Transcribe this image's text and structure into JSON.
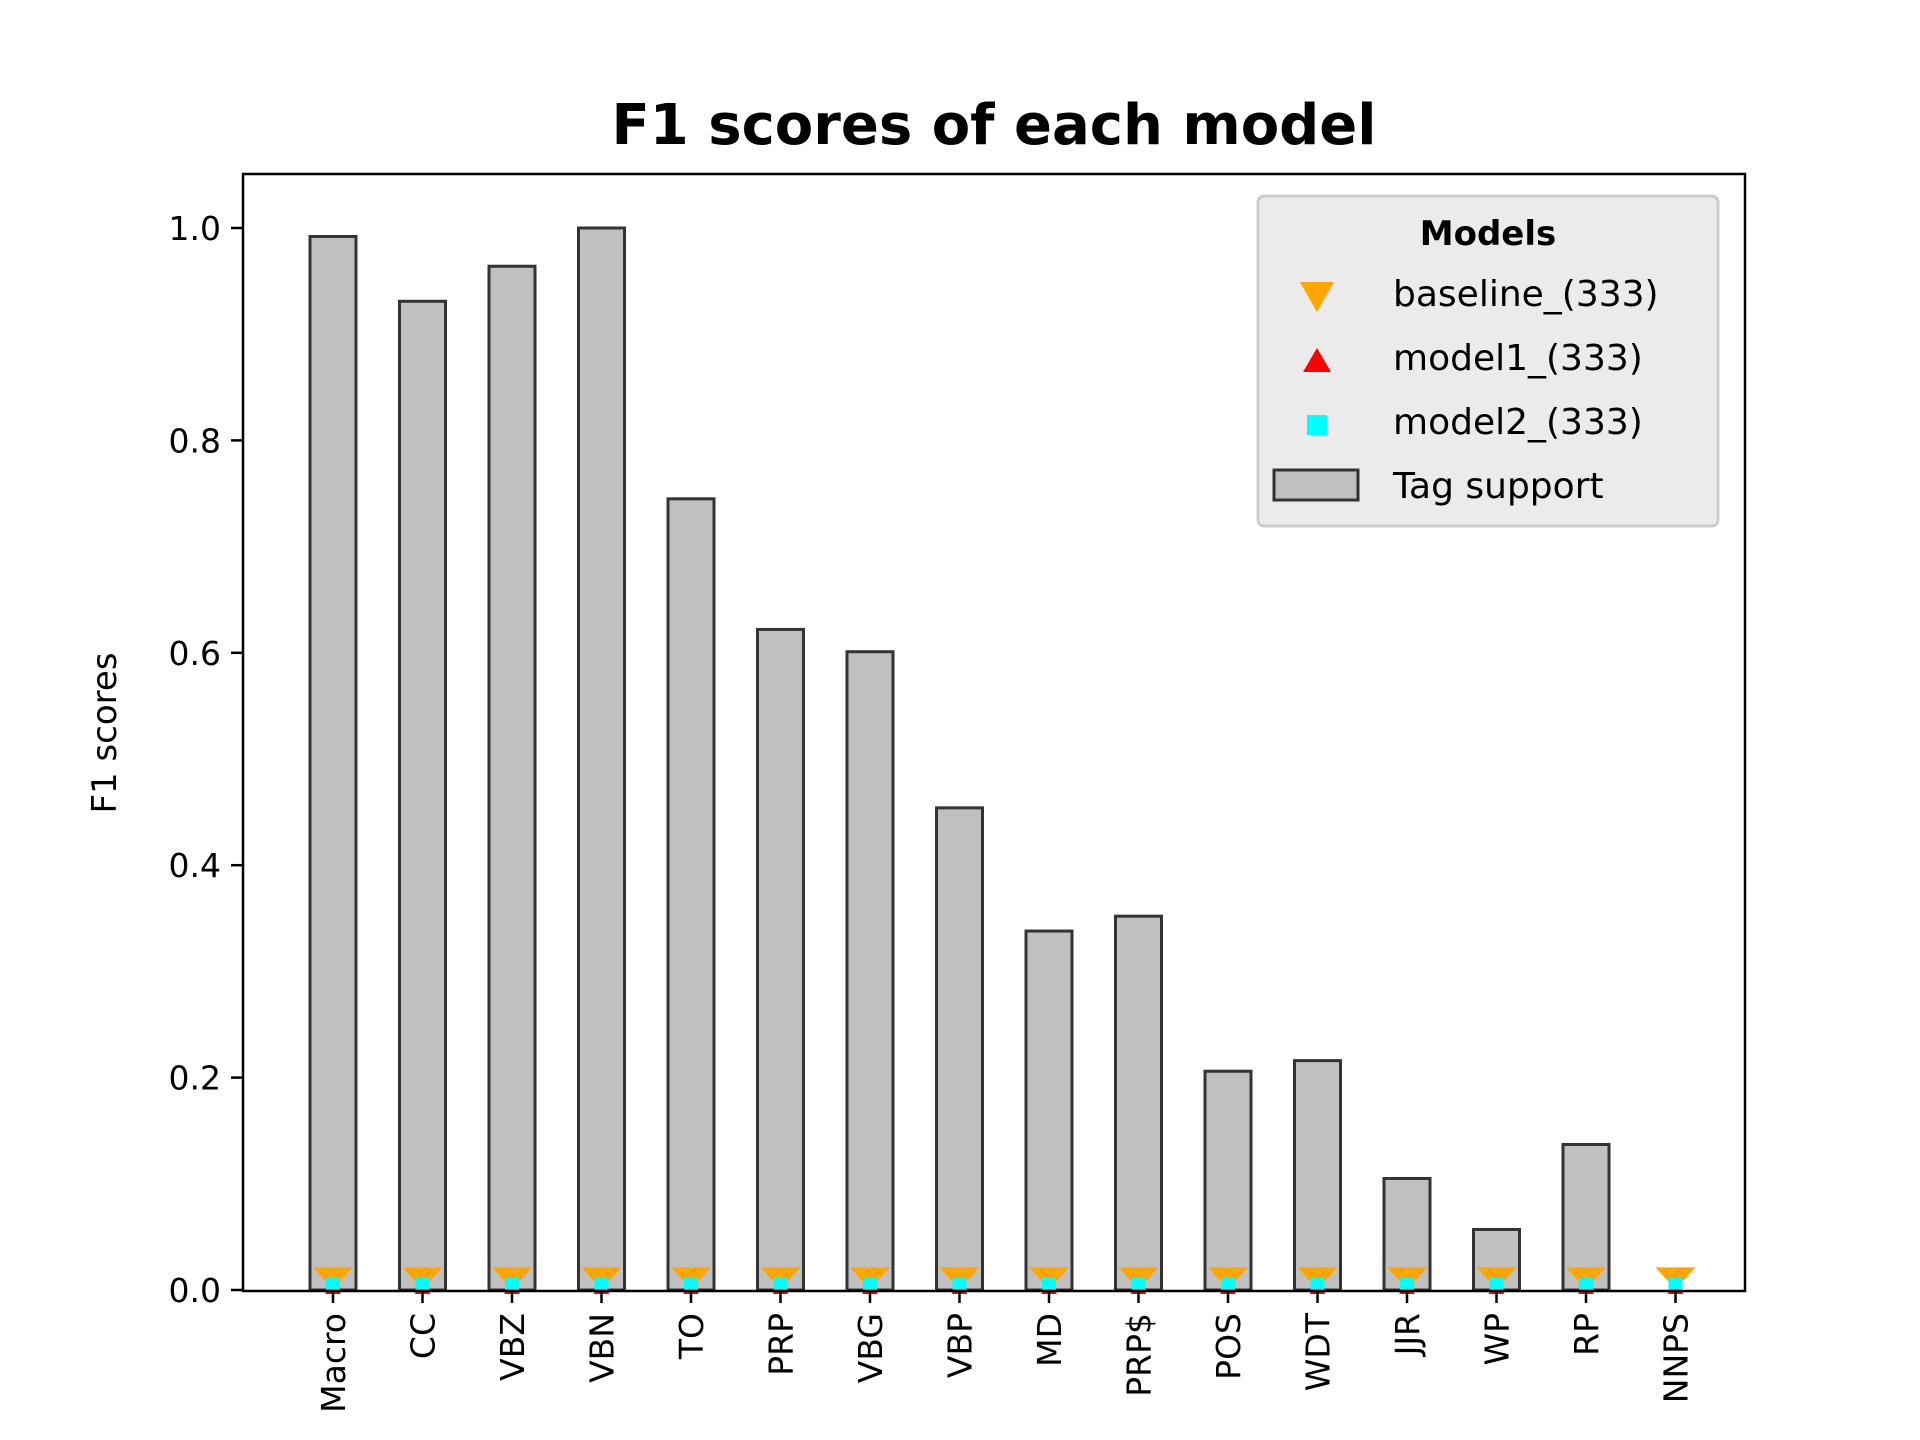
{
  "chart_data": {
    "type": "bar",
    "title": "F1 scores of each model",
    "ylabel": "F1 scores",
    "xlabel": "",
    "ylim": [
      0,
      1.05
    ],
    "yticks": [
      "0.0",
      "0.2",
      "0.4",
      "0.6",
      "0.8",
      "1.0"
    ],
    "categories": [
      "Macro",
      "CC",
      "VBZ",
      "VBN",
      "TO",
      "PRP",
      "VBG",
      "VBP",
      "MD",
      "PRP$",
      "POS",
      "WDT",
      "JJR",
      "WP",
      "RP",
      "NNPS"
    ],
    "bar_series": {
      "name": "Tag support",
      "color": "#c0c0c0",
      "edge_color": "#333333",
      "values": [
        0.992,
        0.931,
        0.964,
        1.0,
        0.745,
        0.622,
        0.601,
        0.454,
        0.338,
        0.352,
        0.206,
        0.216,
        0.105,
        0.057,
        0.137,
        0.0
      ]
    },
    "series": [
      {
        "name": "baseline_(333)",
        "marker": "triangle-down",
        "color": "#FFA500",
        "values": [
          0.01,
          0.01,
          0.01,
          0.01,
          0.01,
          0.01,
          0.01,
          0.01,
          0.01,
          0.01,
          0.01,
          0.01,
          0.01,
          0.01,
          0.01,
          0.01
        ]
      },
      {
        "name": "model1_(333)",
        "marker": "triangle-up",
        "color": "#FF0000",
        "values": [
          0.0,
          0.0,
          0.0,
          0.0,
          0.0,
          0.0,
          0.0,
          0.0,
          0.0,
          0.0,
          0.0,
          0.0,
          0.0,
          0.0,
          0.0,
          0.0
        ]
      },
      {
        "name": "model2_(333)",
        "marker": "square",
        "color": "#00FFFF",
        "values": [
          0.005,
          0.005,
          0.005,
          0.005,
          0.005,
          0.005,
          0.005,
          0.005,
          0.005,
          0.005,
          0.005,
          0.005,
          0.005,
          0.005,
          0.005,
          0.005
        ]
      }
    ],
    "legend": {
      "title": "Models",
      "placement": "top-right",
      "entries": [
        "baseline_(333)",
        "model1_(333)",
        "model2_(333)",
        "Tag support"
      ]
    },
    "grid": false
  }
}
